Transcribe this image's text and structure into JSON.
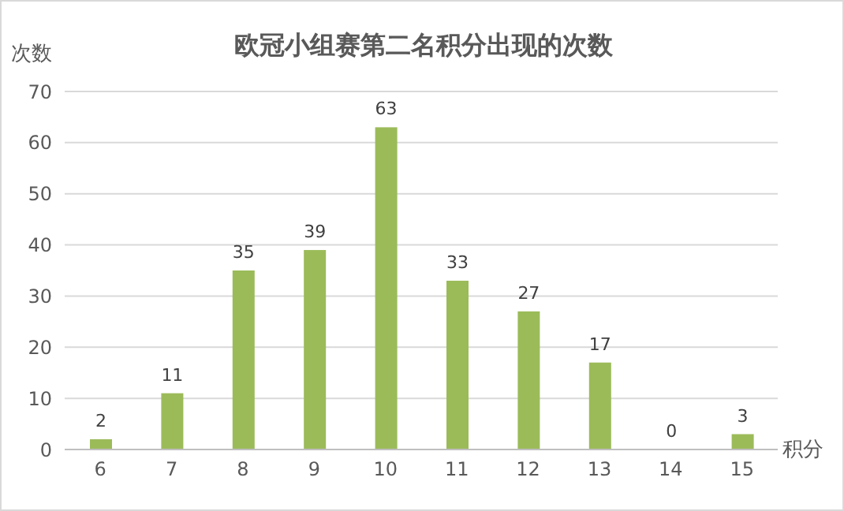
{
  "chart_data": {
    "type": "bar",
    "title": "欧冠小组赛第二名积分出现的次数",
    "ylabel": "次数",
    "xlabel": "积分",
    "categories": [
      "6",
      "7",
      "8",
      "9",
      "10",
      "11",
      "12",
      "13",
      "14",
      "15"
    ],
    "values": [
      2,
      11,
      35,
      39,
      63,
      33,
      27,
      17,
      0,
      3
    ],
    "color": "#9bbb59",
    "ylim": [
      0,
      70
    ],
    "yticks": [
      0,
      10,
      20,
      30,
      40,
      50,
      60,
      70
    ],
    "grid": "y",
    "data_labels": true
  }
}
